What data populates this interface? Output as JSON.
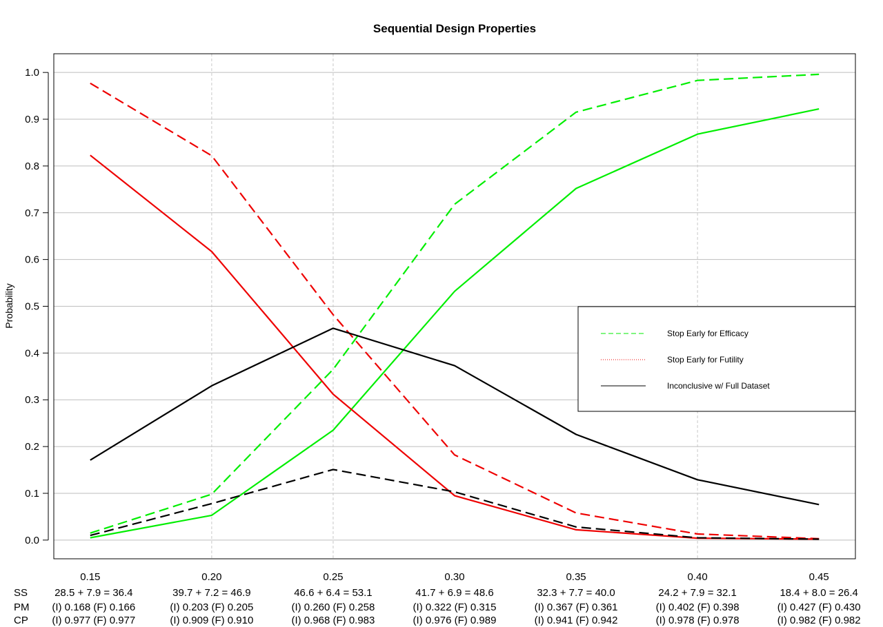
{
  "chart_data": {
    "type": "line",
    "title": "Sequential Design Properties",
    "xlabel": "",
    "ylabel": "Probability",
    "xlim": [
      0.135,
      0.465
    ],
    "ylim": [
      -0.04,
      1.04
    ],
    "grid": "horizontal lines at y ticks, dashed vertical lines at x = 0.20, 0.25, 0.40",
    "legend_position": "right",
    "x": [
      0.15,
      0.2,
      0.25,
      0.3,
      0.35,
      0.4,
      0.45
    ],
    "x_tick_labels": [
      "0.15",
      "0.20",
      "0.25",
      "0.30",
      "0.35",
      "0.40",
      "0.45"
    ],
    "y_ticks": [
      0.0,
      0.1,
      0.2,
      0.3,
      0.4,
      0.5,
      0.6,
      0.7,
      0.8,
      0.9,
      1.0
    ],
    "y_tick_labels": [
      "0.0",
      "0.1",
      "0.2",
      "0.3",
      "0.4",
      "0.5",
      "0.6",
      "0.7",
      "0.8",
      "0.9",
      "1.0"
    ],
    "vgrid_x": [
      0.2,
      0.25,
      0.4
    ],
    "series": [
      {
        "color": "#00EE00",
        "style": "solid",
        "values": [
          0.005,
          0.053,
          0.235,
          0.532,
          0.752,
          0.868,
          0.922
        ]
      },
      {
        "color": "#00EE00",
        "style": "dashed",
        "values": [
          0.015,
          0.098,
          0.365,
          0.718,
          0.915,
          0.983,
          0.996
        ]
      },
      {
        "color": "#EE0000",
        "style": "solid",
        "values": [
          0.823,
          0.617,
          0.312,
          0.095,
          0.022,
          0.004,
          0.002
        ]
      },
      {
        "color": "#EE0000",
        "style": "dashed",
        "values": [
          0.977,
          0.822,
          0.482,
          0.182,
          0.058,
          0.013,
          0.003
        ]
      },
      {
        "color": "#000000",
        "style": "solid",
        "values": [
          0.171,
          0.33,
          0.453,
          0.373,
          0.226,
          0.129,
          0.076
        ]
      },
      {
        "color": "#000000",
        "style": "dashed",
        "values": [
          0.01,
          0.078,
          0.151,
          0.103,
          0.028,
          0.005,
          0.002
        ]
      }
    ],
    "legend": [
      {
        "label": "Stop Early for Efficacy",
        "color": "#00EE00",
        "style": "dashed"
      },
      {
        "label": "Stop Early for Futility",
        "color": "#EE0000",
        "style": "dotted"
      },
      {
        "label": "Inconclusive w/ Full Dataset",
        "color": "#000000",
        "style": "solid"
      }
    ],
    "table_rows": [
      {
        "label": "SS",
        "values": [
          "28.5 + 7.9 = 36.4",
          "39.7 + 7.2 = 46.9",
          "46.6 + 6.4 = 53.1",
          "41.7 + 6.9 = 48.6",
          "32.3 + 7.7 = 40.0",
          "24.2 + 7.9 = 32.1",
          "18.4 + 8.0 = 26.4"
        ]
      },
      {
        "label": "PM",
        "values": [
          "(I) 0.168 (F) 0.166",
          "(I) 0.203 (F) 0.205",
          "(I) 0.260 (F) 0.258",
          "(I) 0.322 (F) 0.315",
          "(I) 0.367 (F) 0.361",
          "(I) 0.402 (F) 0.398",
          "(I) 0.427 (F) 0.430"
        ]
      },
      {
        "label": "CP",
        "values": [
          "(I) 0.977 (F) 0.977",
          "(I) 0.909 (F) 0.910",
          "(I) 0.968 (F) 0.983",
          "(I) 0.976 (F) 0.989",
          "(I) 0.941 (F) 0.942",
          "(I) 0.978 (F) 0.978",
          "(I) 0.982 (F) 0.982"
        ]
      }
    ]
  }
}
